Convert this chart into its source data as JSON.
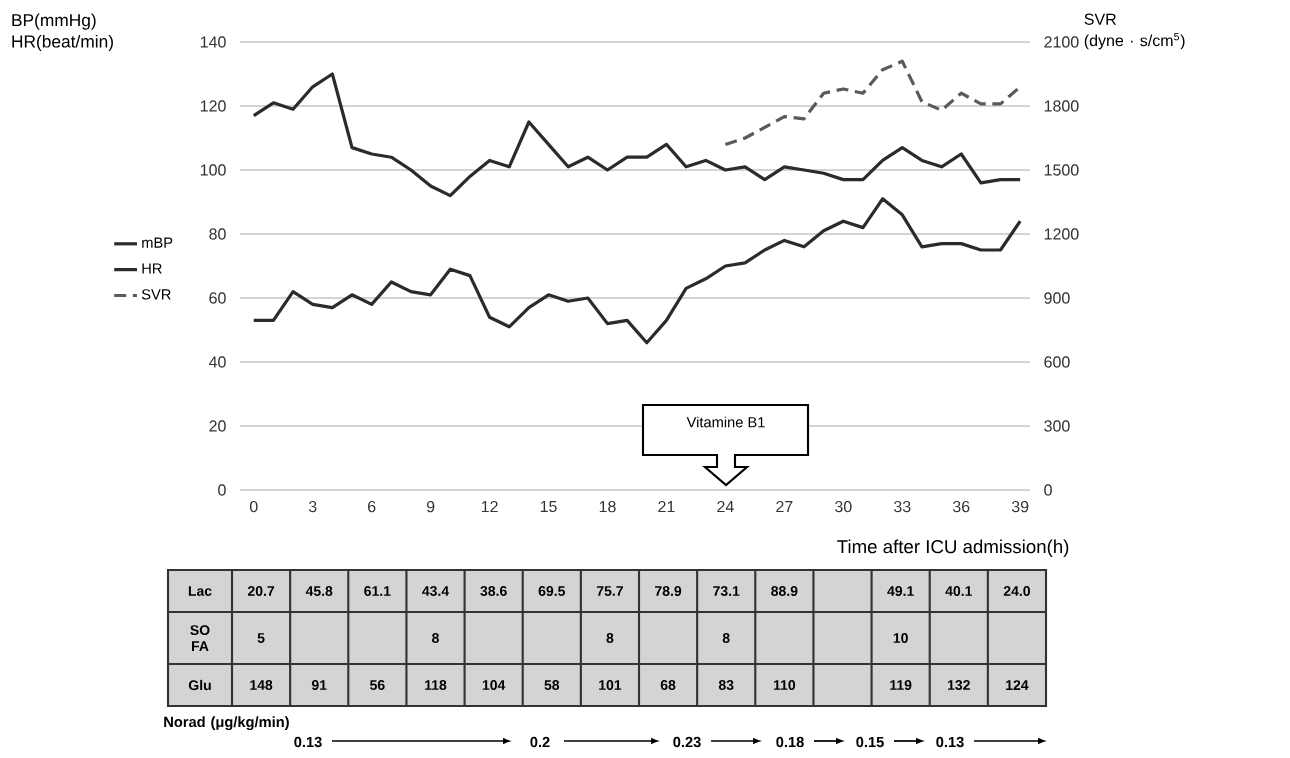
{
  "chart_data": [
    {
      "type": "line",
      "xlabel": "Time after ICU admission(h)",
      "ylabel": "BP(mmHg) HR(beat/min)",
      "y2label": "SVR (dyne · s/cm$^{5}$)",
      "x": [
        0,
        1,
        2,
        3,
        4,
        5,
        6,
        7,
        8,
        9,
        10,
        11,
        12,
        13,
        14,
        15,
        16,
        17,
        18,
        19,
        20,
        21,
        22,
        23,
        24,
        25,
        26,
        27,
        28,
        29,
        30,
        31,
        32,
        33,
        34,
        35,
        36,
        37,
        38,
        39
      ],
      "series": [
        {
          "name": "mBP",
          "color": "#2b2b2b",
          "line_style": "solid",
          "values": [
            53,
            53,
            62,
            58,
            57,
            61,
            58,
            65,
            62,
            61,
            69,
            67,
            54,
            51,
            57,
            61,
            59,
            60,
            52,
            53,
            46,
            53,
            63,
            66,
            70,
            71,
            75,
            78,
            76,
            81,
            84,
            82,
            91,
            86,
            76,
            77,
            77,
            75,
            75,
            84
          ]
        },
        {
          "name": "HR",
          "color": "#2b2b2b",
          "line_style": "solid",
          "values": [
            117,
            121,
            119,
            126,
            130,
            107,
            105,
            104,
            100,
            95,
            92,
            98,
            103,
            101,
            115,
            108,
            101,
            104,
            100,
            104,
            104,
            108,
            101,
            103,
            100,
            101,
            97,
            101,
            100,
            99,
            97,
            97,
            103,
            107,
            103,
            101,
            105,
            96,
            97,
            97
          ]
        },
        {
          "name": "SVR",
          "color": "#5a5a5a",
          "line_style": "dashed",
          "axis": "y2",
          "values": [
            null,
            null,
            null,
            null,
            null,
            null,
            null,
            null,
            null,
            null,
            null,
            null,
            null,
            null,
            null,
            null,
            null,
            null,
            null,
            null,
            null,
            null,
            null,
            null,
            1620,
            1650,
            1700,
            1750,
            1740,
            1860,
            1880,
            1860,
            1970,
            2010,
            1820,
            1780,
            1860,
            1810,
            1810,
            1890
          ]
        }
      ],
      "xlim": [
        -0.7,
        39.5
      ],
      "xticks": [
        0,
        3,
        6,
        9,
        12,
        15,
        18,
        21,
        24,
        27,
        30,
        33,
        36,
        39
      ],
      "ylim": [
        0,
        140
      ],
      "yticks": [
        0,
        20,
        40,
        60,
        80,
        100,
        120,
        140
      ],
      "y2lim": [
        0,
        2100
      ],
      "y2ticks": [
        0,
        300,
        600,
        900,
        1200,
        1500,
        1800,
        2100
      ],
      "grid": "y",
      "legend": "left",
      "annotations": [
        "Vitamine B1"
      ]
    },
    {
      "type": "other",
      "categories": [
        null,
        null,
        null,
        null,
        null,
        null,
        null,
        null,
        null,
        null,
        null,
        null,
        null,
        null
      ],
      "y_categories": [
        "Lac",
        "SO FA",
        "Glu"
      ],
      "cell_labels": [
        [
          "20.7",
          "45.8",
          "61.1",
          "43.4",
          "38.6",
          "69.5",
          "75.7",
          "78.9",
          "73.1",
          "88.9",
          null,
          "49.1",
          "40.1",
          "24.0"
        ],
        [
          "5",
          null,
          null,
          "8",
          null,
          null,
          "8",
          null,
          "8",
          null,
          null,
          "10",
          null,
          null
        ],
        [
          "148",
          "91",
          "56",
          "118",
          "104",
          "58",
          "101",
          "68",
          "83",
          "110",
          null,
          "119",
          "132",
          "124"
        ]
      ],
      "annotations": [
        "Norad (μg/kg/min)",
        "0.13",
        "0.2",
        "0.23",
        "0.18",
        "0.15",
        "0.13"
      ]
    }
  ]
}
